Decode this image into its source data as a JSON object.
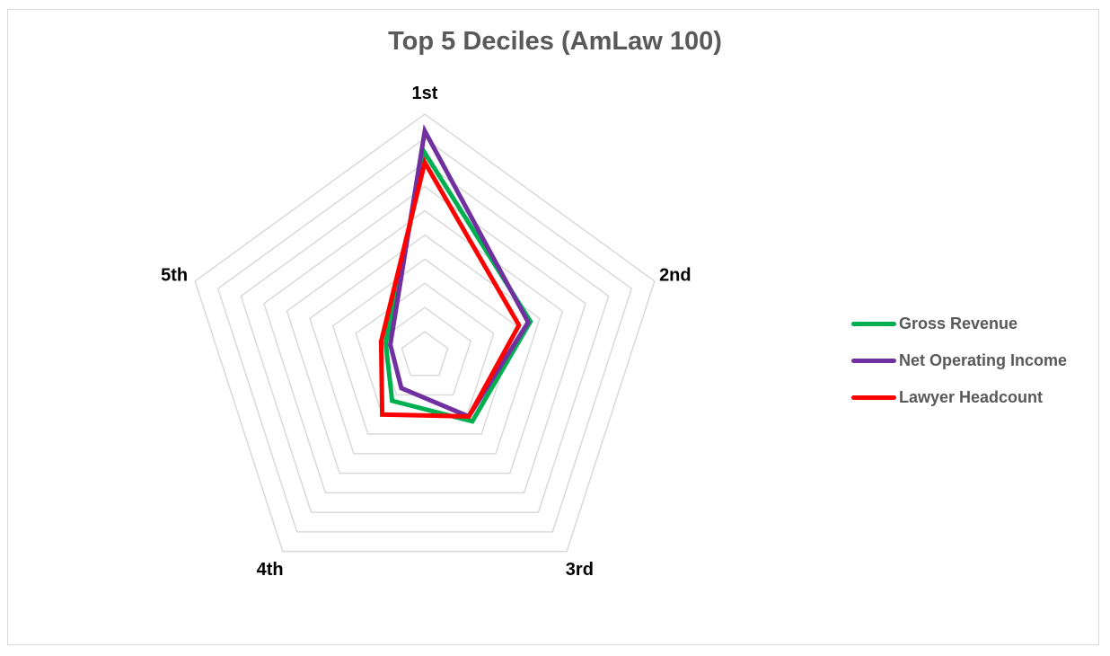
{
  "chart_data": {
    "type": "radar",
    "title": "Top 5 Deciles (AmLaw 100)",
    "categories": [
      "1st",
      "2nd",
      "3rd",
      "4th",
      "5th"
    ],
    "rlim": [
      0,
      10
    ],
    "grid_step": 1,
    "grid": true,
    "legend_position": "right",
    "series": [
      {
        "name": "Gross Revenue",
        "color": "#00b050",
        "values": [
          8.4,
          4.6,
          3.35,
          2.3,
          1.7
        ]
      },
      {
        "name": "Net Operating Income",
        "color": "#7030a0",
        "values": [
          9.3,
          4.5,
          3.1,
          1.65,
          1.5
        ]
      },
      {
        "name": "Lawyer Headcount",
        "color": "#ff0000",
        "values": [
          8.0,
          4.1,
          3.1,
          3.0,
          1.9
        ]
      }
    ]
  }
}
